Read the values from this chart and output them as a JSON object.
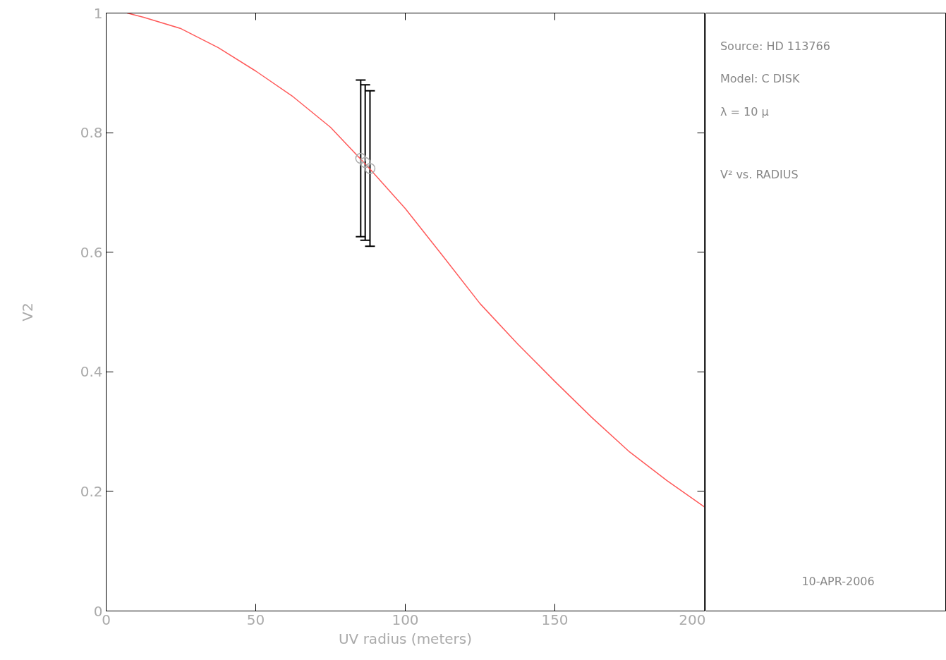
{
  "chart_data": {
    "type": "line",
    "xlabel": "UV radius (meters)",
    "ylabel": "V2",
    "xlim": [
      0,
      200
    ],
    "ylim": [
      0,
      1
    ],
    "xticks": [
      0,
      50,
      100,
      150,
      200
    ],
    "yticks": [
      0,
      0.2,
      0.4,
      0.6,
      0.8,
      1
    ],
    "grid": false,
    "series": [
      {
        "color": "#ff5a5a",
        "x": [
          7,
          12.5,
          25,
          37.5,
          50,
          62.5,
          75,
          87.5,
          100,
          112.5,
          125,
          137.5,
          150,
          162.5,
          175,
          187.5,
          200
        ],
        "values": [
          1,
          0.993,
          0.974,
          0.942,
          0.903,
          0.86,
          0.809,
          0.743,
          0.673,
          0.594,
          0.514,
          0.447,
          0.384,
          0.323,
          0.266,
          0.218,
          0.174
        ]
      },
      {
        "type": "scatter",
        "marker": "circle",
        "color": "#aaaaaa",
        "x": [
          85.1,
          86.6,
          88.2
        ],
        "values": [
          0.757,
          0.75,
          0.74
        ],
        "errors": [
          0.131,
          0.13,
          0.13
        ]
      }
    ],
    "annotations": [
      "Source: HD 113766",
      "Model: C DISK",
      "λ = 10 μ",
      "V² vs. RADIUS",
      "10-APR-2006"
    ]
  }
}
